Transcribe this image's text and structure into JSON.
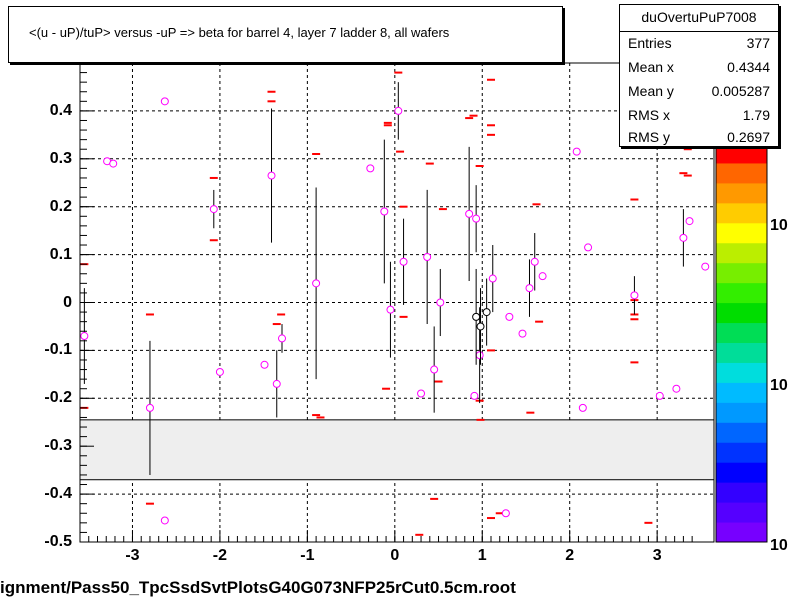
{
  "title": "<(u - uP)/tuP> versus  -uP => beta for barrel 4, layer 7 ladder 8, all wafers",
  "footer": "ignment/Pass50_TpcSsdSvtPlotsG40G073NFP25rCut0.5cm.root",
  "stats": {
    "name": "duOvertuPuP7008",
    "rows": [
      {
        "k": "Entries",
        "v": "377"
      },
      {
        "k": "Mean x",
        "v": "0.4344"
      },
      {
        "k": "Mean y",
        "v": "0.005287"
      },
      {
        "k": "RMS x",
        "v": "1.79"
      },
      {
        "k": "RMS y",
        "v": "0.2697"
      }
    ]
  },
  "palette_labels": [
    "10",
    "10",
    "10"
  ],
  "chart_data": {
    "type": "scatter",
    "title": "<(u - uP)/tuP> versus  -uP => beta for barrel 4, layer 7 ladder 8, all wafers",
    "xlim": [
      -3.6,
      3.65
    ],
    "ylim": [
      -0.5,
      0.5
    ],
    "x_ticks": [
      "-3",
      "-2",
      "-1",
      "0",
      "1",
      "2",
      "3"
    ],
    "y_ticks": [
      "-0.5",
      "-0.4",
      "-0.3",
      "-0.2",
      "-0.1",
      "0",
      "0.1",
      "0.2",
      "0.3",
      "0.4",
      "0.5"
    ],
    "grid": true,
    "band_y": [
      -0.37,
      -0.245
    ],
    "profile_points": [
      {
        "x": -3.55,
        "y": -0.07,
        "err": 0.1
      },
      {
        "x": -3.29,
        "y": 0.295,
        "err": 0
      },
      {
        "x": -3.22,
        "y": 0.29,
        "err": 0
      },
      {
        "x": -2.8,
        "y": -0.22,
        "err": 0.14
      },
      {
        "x": -2.63,
        "y": 0.42,
        "err": 0
      },
      {
        "x": -2.07,
        "y": 0.195,
        "err": 0.04
      },
      {
        "x": -2.0,
        "y": -0.145,
        "err": 0
      },
      {
        "x": -1.49,
        "y": -0.13,
        "err": 0
      },
      {
        "x": -1.41,
        "y": 0.265,
        "err": 0.14
      },
      {
        "x": -1.35,
        "y": -0.17,
        "err": 0.07
      },
      {
        "x": -1.29,
        "y": -0.075,
        "err": 0.03
      },
      {
        "x": -0.9,
        "y": 0.04,
        "err": 0.2
      },
      {
        "x": -0.28,
        "y": 0.28,
        "err": 0
      },
      {
        "x": -0.12,
        "y": 0.19,
        "err": 0.15
      },
      {
        "x": 0.04,
        "y": 0.4,
        "err": 0.06
      },
      {
        "x": 0.1,
        "y": 0.085,
        "err": 0.09
      },
      {
        "x": -0.05,
        "y": -0.015,
        "err": 0.1
      },
      {
        "x": 0.37,
        "y": 0.095,
        "err": 0.14
      },
      {
        "x": 0.45,
        "y": -0.14,
        "err": 0.09
      },
      {
        "x": 0.52,
        "y": 0.0,
        "err": 0.07
      },
      {
        "x": 0.3,
        "y": -0.19,
        "err": 0
      },
      {
        "x": 0.85,
        "y": 0.185,
        "err": 0.14
      },
      {
        "x": 0.93,
        "y": 0.175,
        "err": 0.07
      },
      {
        "x": 0.97,
        "y": -0.11,
        "err": 0.1
      },
      {
        "x": 1.12,
        "y": 0.05,
        "err": 0.07
      },
      {
        "x": 1.31,
        "y": -0.03,
        "err": 0
      },
      {
        "x": 1.46,
        "y": -0.065,
        "err": 0
      },
      {
        "x": 1.54,
        "y": 0.03,
        "err": 0.06
      },
      {
        "x": 1.6,
        "y": 0.085,
        "err": 0.06
      },
      {
        "x": 1.69,
        "y": 0.055,
        "err": 0
      },
      {
        "x": 0.91,
        "y": -0.195,
        "err": 0
      },
      {
        "x": 2.08,
        "y": 0.315,
        "err": 0
      },
      {
        "x": 2.15,
        "y": -0.22,
        "err": 0
      },
      {
        "x": 2.21,
        "y": 0.115,
        "err": 0
      },
      {
        "x": -2.63,
        "y": -0.455,
        "err": 0
      },
      {
        "x": 1.27,
        "y": -0.44,
        "err": 0
      },
      {
        "x": 2.74,
        "y": 0.015,
        "err": 0.04
      },
      {
        "x": 3.03,
        "y": -0.195,
        "err": 0
      },
      {
        "x": 3.22,
        "y": -0.18,
        "err": 0
      },
      {
        "x": 3.3,
        "y": 0.135,
        "err": 0.06
      },
      {
        "x": 3.37,
        "y": 0.17,
        "err": 0
      },
      {
        "x": 3.55,
        "y": 0.075,
        "err": 0
      }
    ],
    "black_points": [
      {
        "x": 0.93,
        "y": -0.03,
        "err": 0.1
      },
      {
        "x": 0.98,
        "y": -0.05,
        "err": 0.08
      },
      {
        "x": 1.05,
        "y": -0.02,
        "err": 0.07
      }
    ],
    "entry_marks": [
      {
        "x": -3.55,
        "y": 0.08
      },
      {
        "x": -3.55,
        "y": -0.22
      },
      {
        "x": -2.8,
        "y": -0.025
      },
      {
        "x": -2.8,
        "y": -0.42
      },
      {
        "x": -2.07,
        "y": 0.26
      },
      {
        "x": -2.07,
        "y": 0.13
      },
      {
        "x": -1.41,
        "y": 0.44
      },
      {
        "x": -1.41,
        "y": 0.42
      },
      {
        "x": -1.35,
        "y": -0.045
      },
      {
        "x": -1.3,
        "y": -0.025
      },
      {
        "x": -0.9,
        "y": 0.31
      },
      {
        "x": -0.9,
        "y": -0.235
      },
      {
        "x": -0.08,
        "y": 0.375
      },
      {
        "x": -0.08,
        "y": 0.37
      },
      {
        "x": -0.1,
        "y": -0.18
      },
      {
        "x": 0.04,
        "y": 0.48
      },
      {
        "x": 0.06,
        "y": 0.315
      },
      {
        "x": 0.1,
        "y": 0.2
      },
      {
        "x": 0.1,
        "y": -0.03
      },
      {
        "x": 0.4,
        "y": 0.29
      },
      {
        "x": 0.45,
        "y": -0.41
      },
      {
        "x": 0.55,
        "y": 0.195
      },
      {
        "x": 0.5,
        "y": -0.165
      },
      {
        "x": 0.28,
        "y": -0.485
      },
      {
        "x": 0.85,
        "y": 0.385
      },
      {
        "x": 0.9,
        "y": 0.39
      },
      {
        "x": 0.97,
        "y": 0.285
      },
      {
        "x": 0.97,
        "y": -0.205
      },
      {
        "x": 0.98,
        "y": -0.245
      },
      {
        "x": 1.1,
        "y": 0.465
      },
      {
        "x": 1.1,
        "y": 0.35
      },
      {
        "x": 1.1,
        "y": 0.37
      },
      {
        "x": 1.1,
        "y": -0.45
      },
      {
        "x": 1.1,
        "y": -0.1
      },
      {
        "x": 1.55,
        "y": -0.23
      },
      {
        "x": 1.62,
        "y": 0.205
      },
      {
        "x": 1.65,
        "y": -0.04
      },
      {
        "x": 2.74,
        "y": 0.215
      },
      {
        "x": 2.74,
        "y": -0.025
      },
      {
        "x": 2.74,
        "y": -0.035
      },
      {
        "x": 2.74,
        "y": -0.125
      },
      {
        "x": 2.74,
        "y": 0.005
      },
      {
        "x": 2.9,
        "y": -0.46
      },
      {
        "x": 3.3,
        "y": 0.27
      },
      {
        "x": 3.35,
        "y": 0.32
      },
      {
        "x": 3.35,
        "y": 0.265
      },
      {
        "x": 1.2,
        "y": -0.44
      },
      {
        "x": -0.85,
        "y": -0.24
      }
    ],
    "palette_colors": [
      "#7700ff",
      "#5500ff",
      "#3300ff",
      "#0000ff",
      "#0033ff",
      "#0066ff",
      "#0099ff",
      "#00bbff",
      "#00dddd",
      "#00dd99",
      "#00dd55",
      "#00dd00",
      "#33ee00",
      "#77ee00",
      "#bbee00",
      "#ffff00",
      "#ffcc00",
      "#ff9900",
      "#ff6600",
      "#ff0000"
    ]
  }
}
